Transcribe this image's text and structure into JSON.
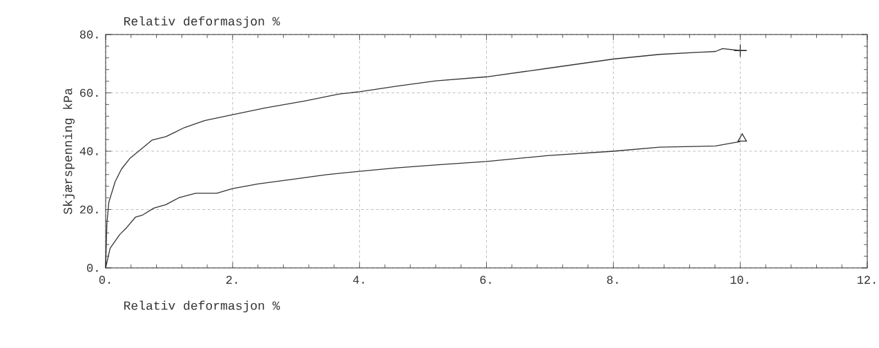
{
  "chart_data": {
    "type": "line",
    "title": "Relativ deformasjon %",
    "xlabel": "Relativ deformasjon %",
    "ylabel": "Skjærspenning kPa",
    "xlim": [
      0,
      12
    ],
    "ylim": [
      0,
      80
    ],
    "xticks": [
      {
        "value": 0,
        "label": "0."
      },
      {
        "value": 2,
        "label": "2."
      },
      {
        "value": 4,
        "label": "4."
      },
      {
        "value": 6,
        "label": "6."
      },
      {
        "value": 8,
        "label": "8."
      },
      {
        "value": 10,
        "label": "10."
      },
      {
        "value": 12,
        "label": "12."
      }
    ],
    "yticks": [
      {
        "value": 0,
        "label": "0."
      },
      {
        "value": 20,
        "label": "20."
      },
      {
        "value": 40,
        "label": "40."
      },
      {
        "value": 60,
        "label": "60."
      },
      {
        "value": 80,
        "label": "80."
      }
    ],
    "grid": true,
    "line_style": "solid",
    "series": [
      {
        "color": "#333333",
        "marker": "none",
        "x": [
          0,
          0.02,
          0.05,
          0.15,
          0.25,
          0.38,
          0.51,
          0.73,
          0.95,
          1.24,
          1.56,
          2,
          2.51,
          3.13,
          3.68,
          4,
          4.58,
          5.2,
          6,
          6.96,
          8,
          8.73,
          9.61,
          9.72,
          10,
          10.1
        ],
        "values": [
          0,
          15.4,
          22.5,
          29.6,
          33.9,
          37.5,
          39.8,
          43.8,
          45,
          48.1,
          50.5,
          52.5,
          54.8,
          57.2,
          59.6,
          60.4,
          62.3,
          64.1,
          65.5,
          68.4,
          71.6,
          73.2,
          74.2,
          75.2,
          74.5,
          74.5
        ]
      },
      {
        "color": "#333333",
        "marker": "none",
        "x": [
          0,
          0.07,
          0.22,
          0.33,
          0.47,
          0.58,
          0.76,
          0.95,
          1.16,
          1.42,
          1.75,
          2,
          2.4,
          2.95,
          3.49,
          4,
          4.58,
          5.2,
          6,
          6.96,
          8,
          8.73,
          9.61,
          9.87,
          10
        ],
        "values": [
          0,
          6.7,
          11.4,
          13.8,
          17.4,
          18.1,
          20.5,
          21.7,
          24.1,
          25.6,
          25.6,
          27.2,
          28.8,
          30.4,
          32,
          33.1,
          34.3,
          35.3,
          36.5,
          38.5,
          40,
          41.4,
          41.8,
          42.8,
          43.3
        ]
      },
      {
        "type": "scatter",
        "color": "#333333",
        "marker": "cross",
        "x": [
          10
        ],
        "values": [
          74.5
        ]
      },
      {
        "type": "scatter",
        "color": "#333333",
        "marker": "triangle",
        "x": [
          10.03
        ],
        "values": [
          44.3
        ]
      }
    ]
  }
}
